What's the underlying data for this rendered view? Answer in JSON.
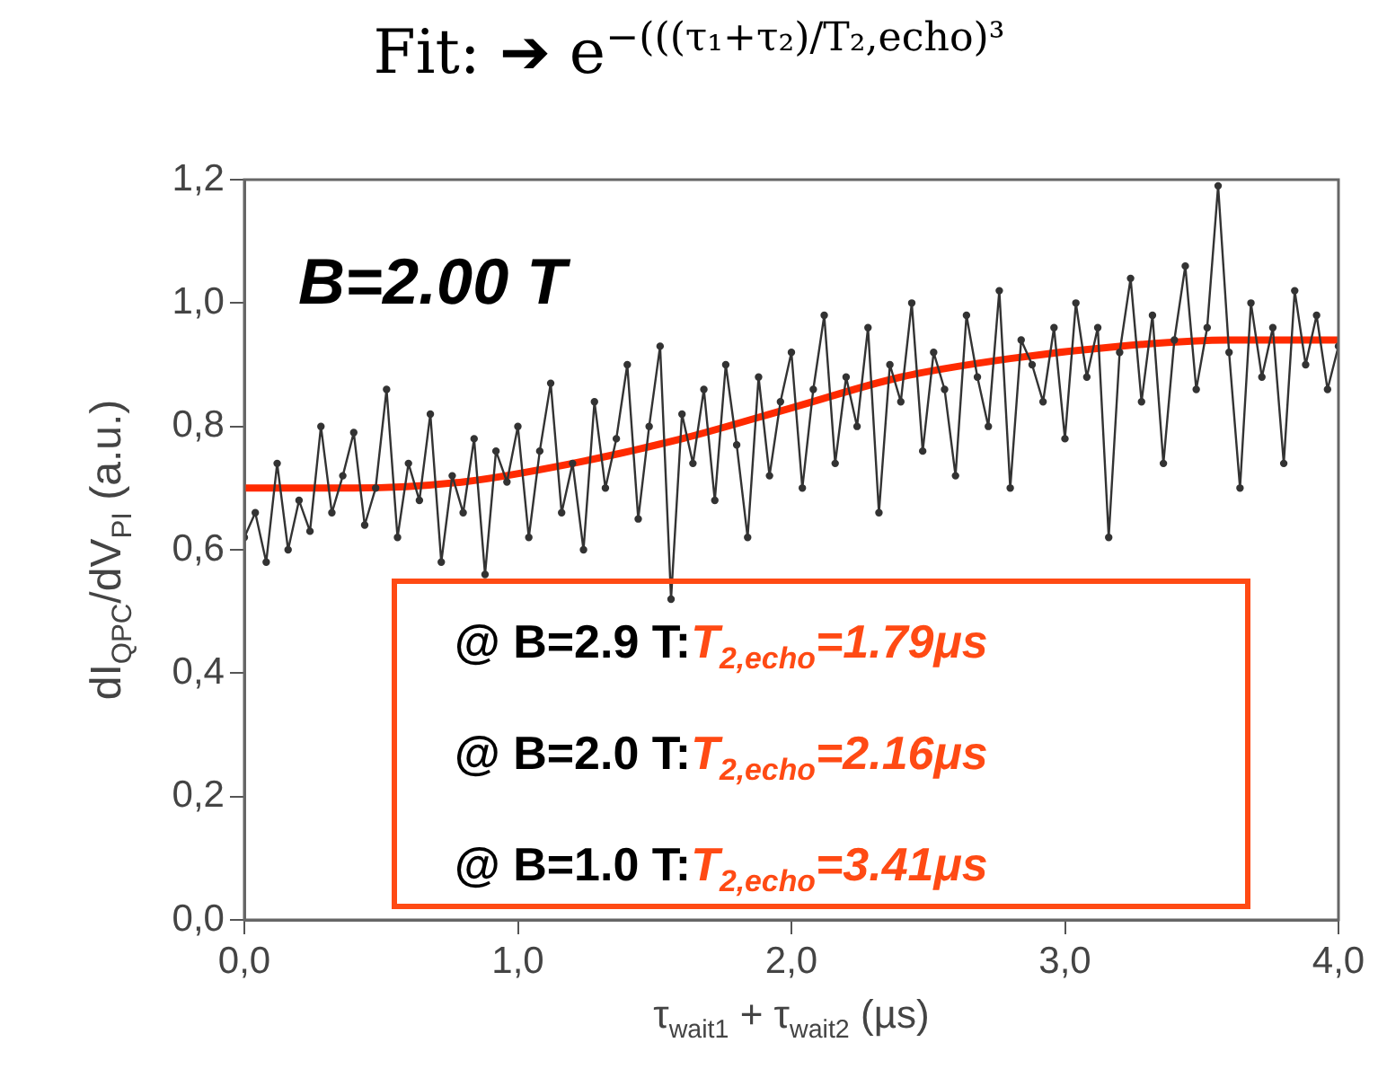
{
  "chart_data": {
    "type": "line",
    "title": "Fit: ➔ e$^{−(((τ₁+τ₂)/T₂,echo)³}$",
    "xlabel": "τ$_{wait1}$ + τ$_{wait2}$ (µs)",
    "ylabel": "dI$_{QPC}$/dV$_{PI}$ (a.u.)",
    "annotations": [
      "B=2.00 T",
      "@ B=2.9 T:T$_{2,echo}$=1.79μs",
      "@ B=2.0 T:T$_{2,echo}$=2.16μs",
      "@ B=1.0 T:T$_{2,echo}$=3.41μs"
    ],
    "series": [
      {
        "color": "#333333",
        "marker": "circle",
        "x": [
          0,
          0.04,
          0.08,
          0.12,
          0.16,
          0.2,
          0.24,
          0.28,
          0.32,
          0.36,
          0.4,
          0.44,
          0.48,
          0.52,
          0.56,
          0.6,
          0.64,
          0.68,
          0.72,
          0.76,
          0.8,
          0.84,
          0.88,
          0.92,
          0.96,
          1.0,
          1.04,
          1.08,
          1.12,
          1.16,
          1.2,
          1.24,
          1.28,
          1.32,
          1.36,
          1.4,
          1.44,
          1.48,
          1.52,
          1.56,
          1.6,
          1.64,
          1.68,
          1.72,
          1.76,
          1.8,
          1.84,
          1.88,
          1.92,
          1.96,
          2.0,
          2.04,
          2.08,
          2.12,
          2.16,
          2.2,
          2.24,
          2.28,
          2.32,
          2.36,
          2.4,
          2.44,
          2.48,
          2.52,
          2.56,
          2.6,
          2.64,
          2.68,
          2.72,
          2.76,
          2.8,
          2.84,
          2.88,
          2.92,
          2.96,
          3.0,
          3.04,
          3.08,
          3.12,
          3.16,
          3.2,
          3.24,
          3.28,
          3.32,
          3.36,
          3.4,
          3.44,
          3.48,
          3.52,
          3.56,
          3.6,
          3.64,
          3.68,
          3.72,
          3.76,
          3.8,
          3.84,
          3.88,
          3.92,
          3.96,
          4.0
        ],
        "values": [
          0.62,
          0.66,
          0.58,
          0.74,
          0.6,
          0.68,
          0.63,
          0.8,
          0.66,
          0.72,
          0.79,
          0.64,
          0.7,
          0.86,
          0.62,
          0.74,
          0.68,
          0.82,
          0.58,
          0.72,
          0.66,
          0.78,
          0.56,
          0.76,
          0.71,
          0.8,
          0.62,
          0.76,
          0.87,
          0.66,
          0.74,
          0.6,
          0.84,
          0.7,
          0.78,
          0.9,
          0.65,
          0.8,
          0.93,
          0.52,
          0.82,
          0.74,
          0.86,
          0.68,
          0.9,
          0.77,
          0.62,
          0.88,
          0.72,
          0.84,
          0.92,
          0.7,
          0.86,
          0.98,
          0.74,
          0.88,
          0.8,
          0.96,
          0.66,
          0.9,
          0.84,
          1.0,
          0.76,
          0.92,
          0.86,
          0.72,
          0.98,
          0.88,
          0.8,
          1.02,
          0.7,
          0.94,
          0.9,
          0.84,
          0.96,
          0.78,
          1.0,
          0.88,
          0.96,
          0.62,
          0.92,
          1.04,
          0.84,
          0.98,
          0.74,
          0.94,
          1.06,
          0.86,
          0.96,
          1.19,
          0.92,
          0.7,
          1.0,
          0.88,
          0.96,
          0.74,
          1.02,
          0.9,
          0.98,
          0.86,
          0.93
        ]
      },
      {
        "color": "#ff2a00",
        "marker": "none",
        "x": [
          0,
          0.4,
          0.8,
          1.2,
          1.6,
          2.0,
          2.4,
          2.8,
          3.2,
          3.6,
          4.0
        ],
        "values": [
          0.7,
          0.7,
          0.71,
          0.74,
          0.78,
          0.83,
          0.88,
          0.91,
          0.93,
          0.94,
          0.94
        ]
      }
    ],
    "xlim": [
      0,
      4
    ],
    "xticks": [
      {
        "value": 0,
        "label": "0,0"
      },
      {
        "value": 1,
        "label": "1,0"
      },
      {
        "value": 2,
        "label": "2,0"
      },
      {
        "value": 3,
        "label": "3,0"
      },
      {
        "value": 4,
        "label": "4,0"
      }
    ],
    "ylim": [
      0,
      1.2
    ],
    "yticks": [
      {
        "value": 0,
        "label": "0,0"
      },
      {
        "value": 0.2,
        "label": "0,2"
      },
      {
        "value": 0.4,
        "label": "0,4"
      },
      {
        "value": 0.6,
        "label": "0,6"
      },
      {
        "value": 0.8,
        "label": "0,8"
      },
      {
        "value": 1.0,
        "label": "1,0"
      },
      {
        "value": 1.2,
        "label": "1,2"
      }
    ],
    "grid": false,
    "legend": false
  }
}
